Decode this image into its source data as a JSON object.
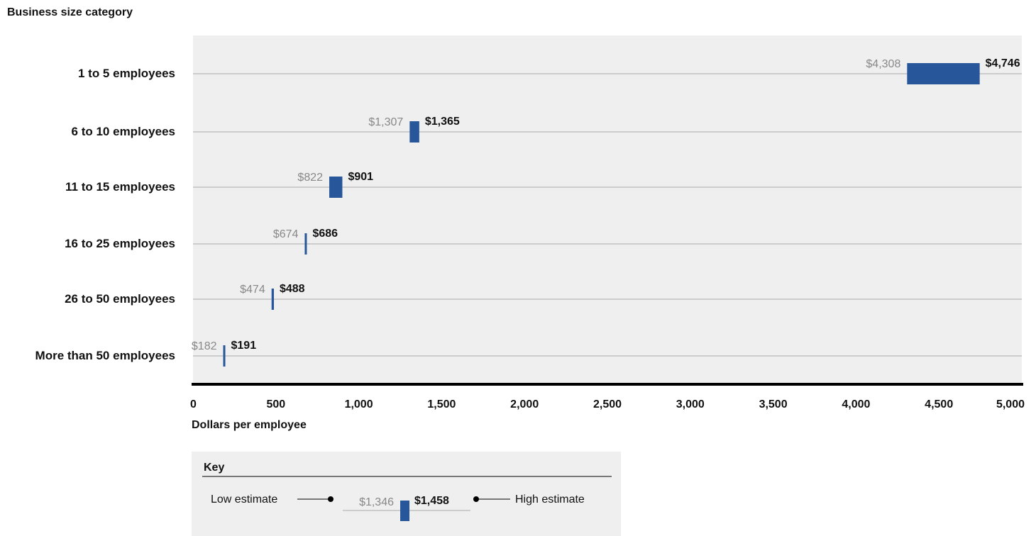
{
  "chart_data": {
    "type": "range-bar",
    "y_axis_title": "Business size category",
    "xlabel": "Dollars per employee",
    "xlim": [
      0,
      5000
    ],
    "xticks": [
      0,
      500,
      1000,
      1500,
      2000,
      2500,
      3000,
      3500,
      4000,
      4500,
      5000
    ],
    "xtick_labels": [
      "0",
      "500",
      "1,000",
      "1,500",
      "2,000",
      "2,500",
      "3,000",
      "3,500",
      "4,000",
      "4,500",
      "5,000"
    ],
    "grid": "horizontal lines at each category",
    "categories": [
      "1 to 5 employees",
      "6 to 10 employees",
      "11 to 15 employees",
      "16 to 25 employees",
      "26 to 50 employees",
      "More than 50 employees"
    ],
    "low": [
      4308,
      1307,
      822,
      674,
      474,
      182
    ],
    "high": [
      4746,
      1365,
      901,
      686,
      488,
      191
    ],
    "low_labels": [
      "$4,308",
      "$1,307",
      "$822",
      "$674",
      "$474",
      "$182"
    ],
    "high_labels": [
      "$4,746",
      "$1,365",
      "$901",
      "$686",
      "$488",
      "$191"
    ],
    "colors": {
      "bar": "#27579a",
      "panel": "#efefef",
      "low_label": "#888888",
      "high_label": "#111111",
      "axis": "#000000"
    }
  },
  "key": {
    "title": "Key",
    "low_text": "Low estimate",
    "high_text": "High estimate",
    "example_low": "$1,346",
    "example_high": "$1,458"
  }
}
